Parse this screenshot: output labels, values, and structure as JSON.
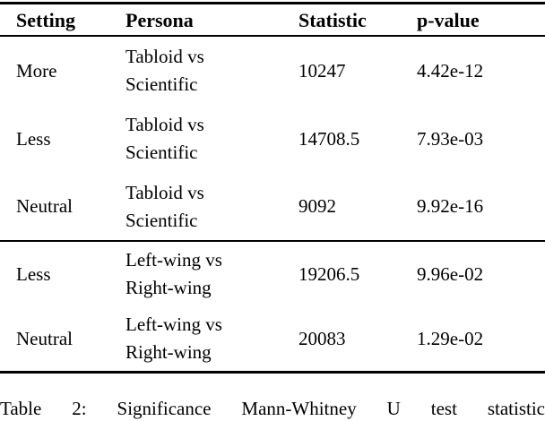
{
  "document": {
    "colors": {
      "text": "#000000",
      "background": "#ffffff",
      "rule": "#000000"
    },
    "table": {
      "columns": [
        "Setting",
        "Persona",
        "Statistic",
        "p-value"
      ],
      "rows": [
        {
          "setting": "More",
          "persona": "Tabloid vs\nScientific",
          "statistic": "10247",
          "p_value": "4.42e-12"
        },
        {
          "setting": "Less",
          "persona": "Tabloid vs\nScientific",
          "statistic": "14708.5",
          "p_value": "7.93e-03"
        },
        {
          "setting": "Neutral",
          "persona": "Tabloid vs\nScientific",
          "statistic": "9092",
          "p_value": "9.92e-16"
        },
        {
          "setting": "Less",
          "persona": "Left-wing vs\nRight-wing",
          "statistic": "19206.5",
          "p_value": "9.96e-02"
        },
        {
          "setting": "Neutral",
          "persona": "Left-wing vs\nRight-wing",
          "statistic": "20083",
          "p_value": "1.29e-02"
        }
      ]
    },
    "caption": "Table 2: Significance Mann-Whitney U test statistic"
  },
  "chart_data": {
    "type": "table",
    "title": "Table 2",
    "columns": [
      "Setting",
      "Persona",
      "Statistic",
      "p-value"
    ],
    "rows": [
      [
        "More",
        "Tabloid vs Scientific",
        10247,
        "4.42e-12"
      ],
      [
        "Less",
        "Tabloid vs Scientific",
        14708.5,
        "7.93e-03"
      ],
      [
        "Neutral",
        "Tabloid vs Scientific",
        9092,
        "9.92e-16"
      ],
      [
        "Less",
        "Left-wing vs Right-wing",
        19206.5,
        "9.96e-02"
      ],
      [
        "Neutral",
        "Left-wing vs Right-wing",
        20083,
        "1.29e-02"
      ]
    ],
    "sections": [
      [
        0,
        1,
        2
      ],
      [
        3,
        4
      ]
    ]
  }
}
